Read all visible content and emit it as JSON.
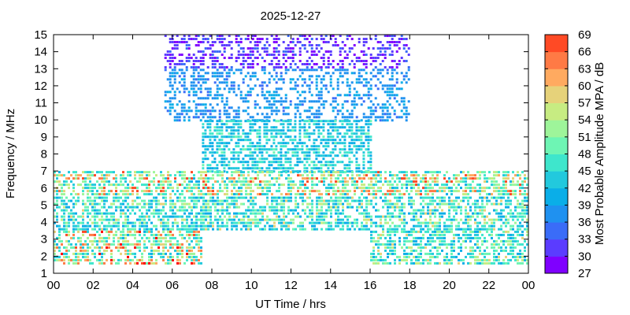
{
  "chart_data": {
    "type": "heatmap",
    "title": "2025-12-27",
    "xlabel": "UT Time / hrs",
    "ylabel": "Frequency / MHz",
    "colorbar_label": "Most Probable Amplitude MPA / dB",
    "xlim": [
      0,
      24
    ],
    "ylim": [
      1,
      15
    ],
    "x_ticks": [
      "00",
      "02",
      "04",
      "06",
      "08",
      "10",
      "12",
      "14",
      "16",
      "18",
      "20",
      "22",
      "00"
    ],
    "y_ticks": [
      "1",
      "2",
      "3",
      "4",
      "5",
      "6",
      "7",
      "8",
      "9",
      "10",
      "11",
      "12",
      "13",
      "14",
      "15"
    ],
    "colorbar": {
      "range": [
        27,
        69
      ],
      "ticks": [
        "27",
        "30",
        "33",
        "36",
        "39",
        "42",
        "45",
        "48",
        "51",
        "54",
        "57",
        "60",
        "63",
        "66",
        "69"
      ],
      "colors": [
        "#7f00ff",
        "#5b3cff",
        "#3a6cf8",
        "#1f91f0",
        "#0aaee8",
        "#22c9dd",
        "#3ee6cc",
        "#6ef5b4",
        "#9ef59a",
        "#c7ec82",
        "#e6d27a",
        "#ffaa60",
        "#ff7a45",
        "#ff4a25",
        "#ff0000"
      ]
    },
    "regions": [
      {
        "x": [
          5.6,
          18.0
        ],
        "y": [
          13.0,
          15.0
        ],
        "amplitude": [
          27,
          34
        ]
      },
      {
        "x": [
          5.6,
          18.0
        ],
        "y": [
          10.0,
          13.0
        ],
        "amplitude": [
          34,
          40
        ]
      },
      {
        "x": [
          7.5,
          16.0
        ],
        "y": [
          7.0,
          10.0
        ],
        "amplitude": [
          38,
          48
        ]
      },
      {
        "x": [
          0.0,
          24.0
        ],
        "y": [
          5.5,
          7.0
        ],
        "amplitude": [
          40,
          66
        ]
      },
      {
        "x": [
          0.0,
          24.0
        ],
        "y": [
          3.5,
          5.5
        ],
        "amplitude": [
          38,
          56
        ]
      },
      {
        "x": [
          0.0,
          7.5
        ],
        "y": [
          1.5,
          3.5
        ],
        "amplitude": [
          40,
          69
        ]
      },
      {
        "x": [
          16.0,
          24.0
        ],
        "y": [
          1.5,
          3.5
        ],
        "amplitude": [
          38,
          57
        ]
      }
    ]
  }
}
